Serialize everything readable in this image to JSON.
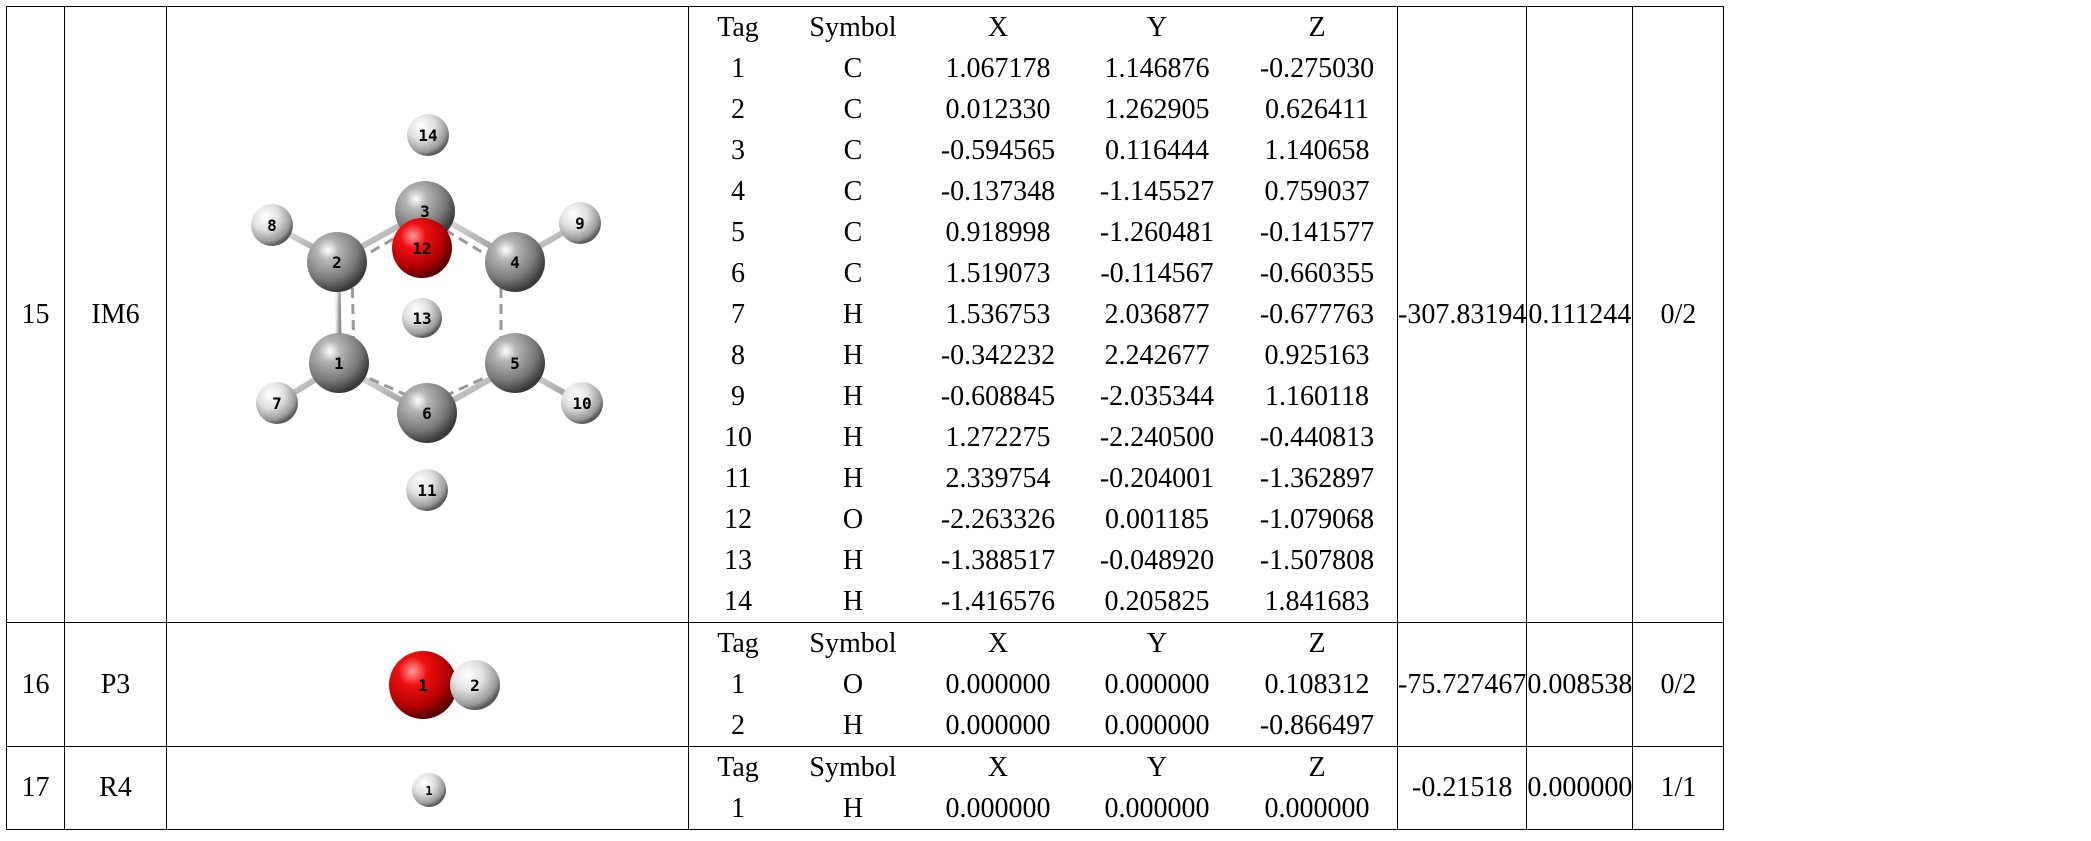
{
  "header": [
    "Tag",
    "Symbol",
    "X",
    "Y",
    "Z"
  ],
  "rows": [
    {
      "index": "15",
      "name": "IM6",
      "energy": "-307.83194",
      "zpe": "0.111244",
      "state": "0/2",
      "molecule": {
        "atom_labels": [
          "1",
          "2",
          "3",
          "4",
          "5",
          "6",
          "7",
          "8",
          "9",
          "10",
          "11",
          "12",
          "13",
          "14"
        ],
        "colors": {
          "carbon": "#8c8c8c",
          "hydrogen": "#e6e6e6",
          "oxygen": "#e00000"
        }
      },
      "atoms": [
        {
          "tag": "1",
          "symbol": "C",
          "x": "1.067178",
          "y": "1.146876",
          "z": "-0.275030"
        },
        {
          "tag": "2",
          "symbol": "C",
          "x": "0.012330",
          "y": "1.262905",
          "z": "0.626411"
        },
        {
          "tag": "3",
          "symbol": "C",
          "x": "-0.594565",
          "y": "0.116444",
          "z": "1.140658"
        },
        {
          "tag": "4",
          "symbol": "C",
          "x": "-0.137348",
          "y": "-1.145527",
          "z": "0.759037"
        },
        {
          "tag": "5",
          "symbol": "C",
          "x": "0.918998",
          "y": "-1.260481",
          "z": "-0.141577"
        },
        {
          "tag": "6",
          "symbol": "C",
          "x": "1.519073",
          "y": "-0.114567",
          "z": "-0.660355"
        },
        {
          "tag": "7",
          "symbol": "H",
          "x": "1.536753",
          "y": "2.036877",
          "z": "-0.677763"
        },
        {
          "tag": "8",
          "symbol": "H",
          "x": "-0.342232",
          "y": "2.242677",
          "z": "0.925163"
        },
        {
          "tag": "9",
          "symbol": "H",
          "x": "-0.608845",
          "y": "-2.035344",
          "z": "1.160118"
        },
        {
          "tag": "10",
          "symbol": "H",
          "x": "1.272275",
          "y": "-2.240500",
          "z": "-0.440813"
        },
        {
          "tag": "11",
          "symbol": "H",
          "x": "2.339754",
          "y": "-0.204001",
          "z": "-1.362897"
        },
        {
          "tag": "12",
          "symbol": "O",
          "x": "-2.263326",
          "y": "0.001185",
          "z": "-1.079068"
        },
        {
          "tag": "13",
          "symbol": "H",
          "x": "-1.388517",
          "y": "-0.048920",
          "z": "-1.507808"
        },
        {
          "tag": "14",
          "symbol": "H",
          "x": "-1.416576",
          "y": "0.205825",
          "z": "1.841683"
        }
      ]
    },
    {
      "index": "16",
      "name": "P3",
      "energy": "-75.727467",
      "zpe": "0.008538",
      "state": "0/2",
      "molecule": {
        "atom_labels": [
          "1",
          "2"
        ]
      },
      "atoms": [
        {
          "tag": "1",
          "symbol": "O",
          "x": "0.000000",
          "y": "0.000000",
          "z": "0.108312"
        },
        {
          "tag": "2",
          "symbol": "H",
          "x": "0.000000",
          "y": "0.000000",
          "z": "-0.866497"
        }
      ]
    },
    {
      "index": "17",
      "name": "R4",
      "energy": "-0.21518",
      "zpe": "0.000000",
      "state": "1/1",
      "molecule": {
        "atom_labels": [
          "1"
        ]
      },
      "atoms": [
        {
          "tag": "1",
          "symbol": "H",
          "x": "0.000000",
          "y": "0.000000",
          "z": "0.000000"
        }
      ]
    }
  ]
}
